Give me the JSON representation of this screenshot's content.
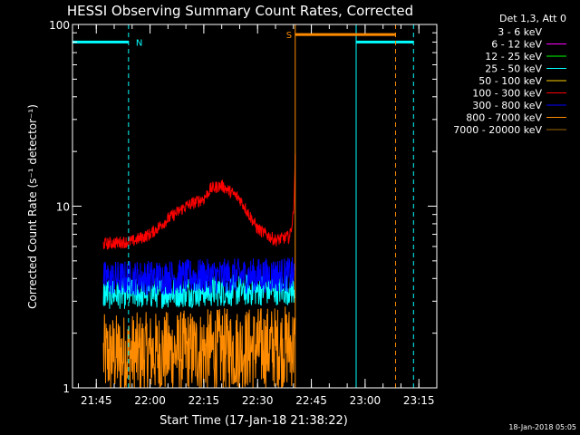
{
  "chart_data": {
    "type": "line",
    "title": "HESSI Observing Summary Count Rates, Corrected",
    "xlabel": "Start Time (17-Jan-18 21:38:22)",
    "ylabel": "Corrected Count Rate (s⁻¹ detector⁻¹)",
    "yscale": "log",
    "ylim": [
      1,
      100
    ],
    "y_tick_labels": [
      "1",
      "10",
      "100"
    ],
    "xlim": [
      "21:38:22",
      "23:20:00"
    ],
    "x_tick_labels": [
      "21:45",
      "22:00",
      "22:15",
      "22:30",
      "22:45",
      "23:00",
      "23:15"
    ],
    "timestamp": "18-Jan-2018 05:05",
    "legend": {
      "placement": "outside-right",
      "header": "Det 1,3, Att 0",
      "entries": [
        {
          "name": "3 - 6 keV",
          "color": "#000000"
        },
        {
          "name": "6 - 12 keV",
          "color": "#ff00ff"
        },
        {
          "name": "12 - 25 keV",
          "color": "#00ff00"
        },
        {
          "name": "25 - 50 keV",
          "color": "#00ffff"
        },
        {
          "name": "50 - 100 keV",
          "color": "#ffd000"
        },
        {
          "name": "100 - 300 keV",
          "color": "#ff0000"
        },
        {
          "name": "300 - 800 keV",
          "color": "#0000ff"
        },
        {
          "name": "800 - 7000 keV",
          "color": "#ff8c00"
        },
        {
          "name": "7000 - 20000 keV",
          "color": "#a06400"
        }
      ]
    },
    "series": [
      {
        "name": "100 - 300 keV",
        "color": "#ff0000",
        "noise_low": 5.8,
        "noise_high": 6.8,
        "x": [
          "21:47",
          "21:55",
          "22:00",
          "22:05",
          "22:10",
          "22:15",
          "22:17",
          "22:20",
          "22:25",
          "22:30",
          "22:35",
          "22:39",
          "22:40",
          "22:40:30"
        ],
        "y": [
          6.2,
          6.4,
          7.0,
          8.5,
          10.0,
          11.0,
          12.5,
          13.0,
          11.0,
          7.5,
          6.5,
          6.8,
          9.0,
          18.0
        ]
      },
      {
        "name": "300 - 800 keV",
        "color": "#0000ff",
        "noise_low": 3.2,
        "noise_high": 5.0,
        "x": [
          "21:47",
          "22:40:30"
        ],
        "y": [
          4.0,
          4.2
        ]
      },
      {
        "name": "25 - 50 keV",
        "color": "#00ffff",
        "noise_low": 2.8,
        "noise_high": 4.2,
        "x": [
          "21:47",
          "22:40:30"
        ],
        "y": [
          3.3,
          3.5
        ]
      },
      {
        "name": "800 - 7000 keV",
        "color": "#ff8c00",
        "noise_low": 1.0,
        "noise_high": 2.9,
        "x": [
          "21:47",
          "22:40:30"
        ],
        "y": [
          1.5,
          1.7
        ]
      }
    ],
    "overlays": [
      {
        "label": "N",
        "color": "#00ffff",
        "level": 80,
        "x_start": "21:38:22",
        "x_end": "21:54:00",
        "x_end_line": "dashed"
      },
      {
        "label": "N",
        "color": "#00ffff",
        "level": 80,
        "x_start": "22:57:30",
        "x_end": "23:13:30",
        "x_start_line": "solid",
        "x_end_line": "dashed"
      },
      {
        "label": "S",
        "color": "#ff8c00",
        "level": 88,
        "x_start": "22:40:30",
        "x_end": "23:08:30",
        "x_start_line": "solid",
        "x_end_line": "dashed"
      }
    ]
  }
}
